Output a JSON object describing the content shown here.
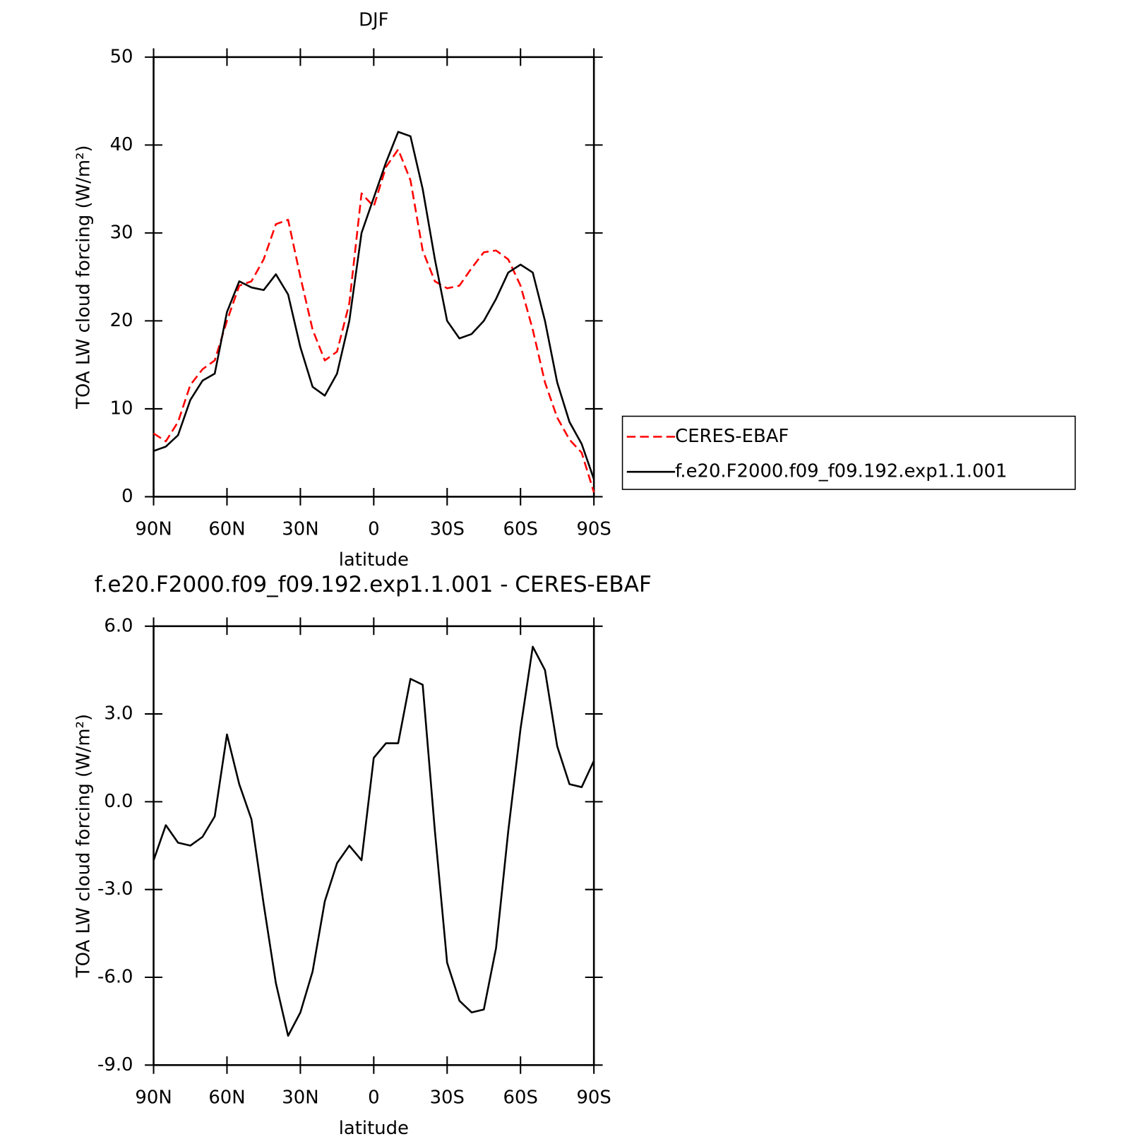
{
  "chart_data": [
    {
      "type": "line",
      "title": "DJF",
      "ylabel": "TOA LW cloud forcing (W/m²)",
      "xlabel": "latitude",
      "x": [
        90,
        85,
        80,
        75,
        70,
        65,
        60,
        55,
        50,
        45,
        40,
        35,
        30,
        25,
        20,
        15,
        10,
        5,
        0,
        -5,
        -10,
        -15,
        -20,
        -25,
        -30,
        -35,
        -40,
        -45,
        -50,
        -55,
        -60,
        -65,
        -70,
        -75,
        -80,
        -85,
        -90
      ],
      "series": [
        {
          "name": "CERES-EBAF",
          "color": "#ff0000",
          "dash": true,
          "values": [
            7.2,
            6.3,
            8.5,
            12.7,
            14.5,
            15.5,
            20,
            24,
            24.5,
            27,
            31,
            31.5,
            25,
            19,
            15.5,
            16.5,
            22,
            34.5,
            33,
            37.5,
            39.5,
            36,
            28,
            24.5,
            23.7,
            24,
            26,
            27.8,
            28,
            27,
            24,
            19,
            13,
            9,
            6.5,
            5,
            0.5
          ]
        },
        {
          "name": "f.e20.F2000.f09_f09.192.exp1.1.001",
          "color": "#000000",
          "dash": false,
          "values": [
            5.2,
            5.7,
            7,
            11,
            13.2,
            14,
            21,
            24.5,
            23.8,
            23.5,
            25.3,
            23,
            17,
            12.5,
            11.5,
            14,
            20,
            30,
            34,
            38,
            41.5,
            41,
            35,
            27,
            20,
            18,
            18.5,
            20,
            22.5,
            25.5,
            26.4,
            25.5,
            20,
            13,
            8.5,
            6,
            2
          ]
        }
      ],
      "xlim": [
        90,
        -90
      ],
      "xticks": [
        {
          "value": 90,
          "label": "90N"
        },
        {
          "value": 60,
          "label": "60N"
        },
        {
          "value": 30,
          "label": "30N"
        },
        0,
        {
          "value": -30,
          "label": "30S"
        },
        {
          "value": -60,
          "label": "60S"
        },
        {
          "value": -90,
          "label": "90S"
        }
      ],
      "ylim": [
        0,
        50
      ],
      "yticks": [
        0,
        10,
        20,
        30,
        40,
        50
      ],
      "legend": "right"
    },
    {
      "type": "line",
      "title": "f.e20.F2000.f09_f09.192.exp1.1.001 - CERES-EBAF",
      "ylabel": "TOA LW cloud forcing (W/m²)",
      "xlabel": "latitude",
      "x": [
        90,
        85,
        80,
        75,
        70,
        65,
        60,
        55,
        50,
        45,
        40,
        35,
        30,
        25,
        20,
        15,
        10,
        5,
        0,
        -5,
        -10,
        -15,
        -20,
        -25,
        -30,
        -35,
        -40,
        -45,
        -50,
        -55,
        -60,
        -65,
        -70,
        -75,
        -80,
        -85,
        -90
      ],
      "color": "#000000",
      "values": [
        -2.0,
        -0.8,
        -1.4,
        -1.5,
        -1.2,
        -0.5,
        2.3,
        0.6,
        -0.6,
        -3.5,
        -6.2,
        -8.0,
        -7.2,
        -5.8,
        -3.4,
        -2.1,
        -1.5,
        -2.0,
        1.5,
        2.0,
        2.0,
        4.2,
        4.0,
        -1,
        -5.5,
        -6.8,
        -7.2,
        -7.1,
        -5,
        -1,
        2.5,
        5.3,
        4.5,
        1.9,
        0.6,
        0.5,
        1.4
      ],
      "xlim": [
        90,
        -90
      ],
      "xticks": [
        {
          "value": 90,
          "label": "90N"
        },
        {
          "value": 60,
          "label": "60N"
        },
        {
          "value": 30,
          "label": "30N"
        },
        0,
        {
          "value": -30,
          "label": "30S"
        },
        {
          "value": -60,
          "label": "60S"
        },
        {
          "value": -90,
          "label": "90S"
        }
      ],
      "ylim": [
        -9,
        6
      ],
      "yticks": [
        {
          "value": -9,
          "label": "-9.0"
        },
        {
          "value": -6,
          "label": "-6.0"
        },
        {
          "value": -3,
          "label": "-3.0"
        },
        {
          "value": 0,
          "label": "0.0"
        },
        {
          "value": 3,
          "label": "3.0"
        },
        {
          "value": 6,
          "label": "6.0"
        }
      ]
    }
  ]
}
